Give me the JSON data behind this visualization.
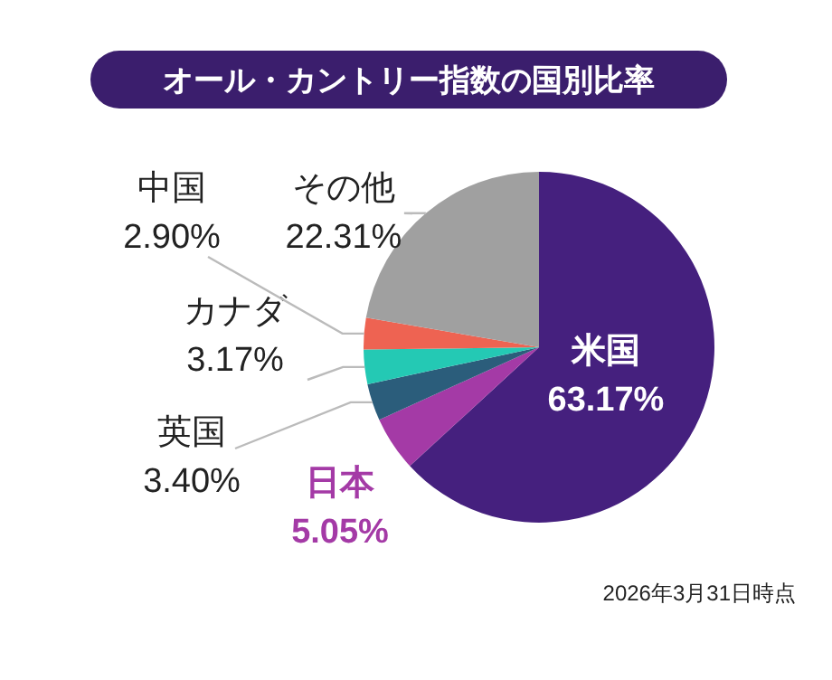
{
  "chart_data": {
    "type": "pie",
    "title": "オール・カントリー指数の国別比率",
    "categories": [
      "米国",
      "日本",
      "英国",
      "カナダ",
      "中国",
      "その他"
    ],
    "values": [
      63.17,
      5.05,
      3.4,
      3.17,
      2.9,
      22.31
    ],
    "colors": [
      "#45207e",
      "#a43aa6",
      "#2b5d7b",
      "#24c9b4",
      "#ee6352",
      "#a0a0a0"
    ],
    "value_labels": [
      "63.17%",
      "5.05%",
      "3.40%",
      "3.17%",
      "2.90%",
      "22.31%"
    ],
    "annotations": [
      "2026年3月31日時点"
    ]
  }
}
